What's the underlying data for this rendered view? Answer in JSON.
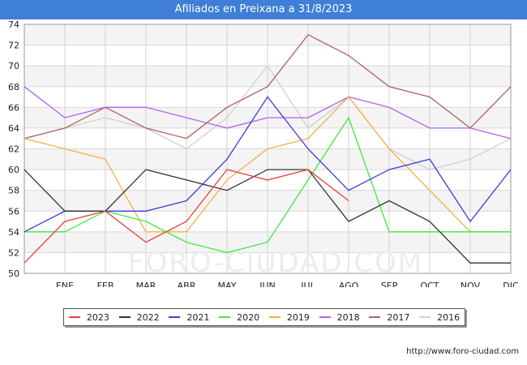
{
  "title": "Afiliados en Preixana a 31/8/2023",
  "source": "http://www.foro-ciudad.com",
  "watermark": "FORO-CIUDAD.COM",
  "chart_data": {
    "type": "line",
    "categories": [
      "",
      "ENE",
      "FEB",
      "MAR",
      "ABR",
      "MAY",
      "JUN",
      "JUL",
      "AGO",
      "SEP",
      "OCT",
      "NOV",
      "DIC"
    ],
    "ylim": [
      50,
      74
    ],
    "yticks": [
      50,
      52,
      54,
      56,
      58,
      60,
      62,
      64,
      66,
      68,
      70,
      72,
      74
    ],
    "grid": true,
    "legend_position": "bottom",
    "series": [
      {
        "name": "2023",
        "color": "#e8403f",
        "values": [
          51,
          55,
          56,
          53,
          55,
          60,
          59,
          60,
          57,
          null,
          null,
          null,
          null
        ]
      },
      {
        "name": "2022",
        "color": "#333333",
        "values": [
          60,
          56,
          56,
          60,
          59,
          58,
          60,
          60,
          55,
          57,
          55,
          51,
          51
        ]
      },
      {
        "name": "2021",
        "color": "#3c3cdc",
        "values": [
          54,
          56,
          56,
          56,
          57,
          61,
          67,
          62,
          58,
          60,
          61,
          55,
          60
        ]
      },
      {
        "name": "2020",
        "color": "#40e840",
        "values": [
          54,
          54,
          56,
          55,
          53,
          52,
          53,
          59,
          65,
          54,
          54,
          54,
          54
        ]
      },
      {
        "name": "2019",
        "color": "#f8b040",
        "values": [
          63,
          62,
          61,
          54,
          54,
          59,
          62,
          63,
          67,
          62,
          58,
          54,
          54
        ]
      },
      {
        "name": "2018",
        "color": "#b060f0",
        "values": [
          68,
          65,
          66,
          66,
          65,
          64,
          65,
          65,
          67,
          66,
          64,
          64,
          63
        ]
      },
      {
        "name": "2017",
        "color": "#b06060",
        "values": [
          63,
          64,
          66,
          64,
          63,
          66,
          68,
          73,
          71,
          68,
          67,
          64,
          68
        ]
      },
      {
        "name": "2016",
        "color": "#d0d0d0",
        "values": [
          63,
          64,
          65,
          64,
          62,
          65,
          70,
          64,
          67,
          62,
          60,
          61,
          63
        ]
      }
    ]
  }
}
